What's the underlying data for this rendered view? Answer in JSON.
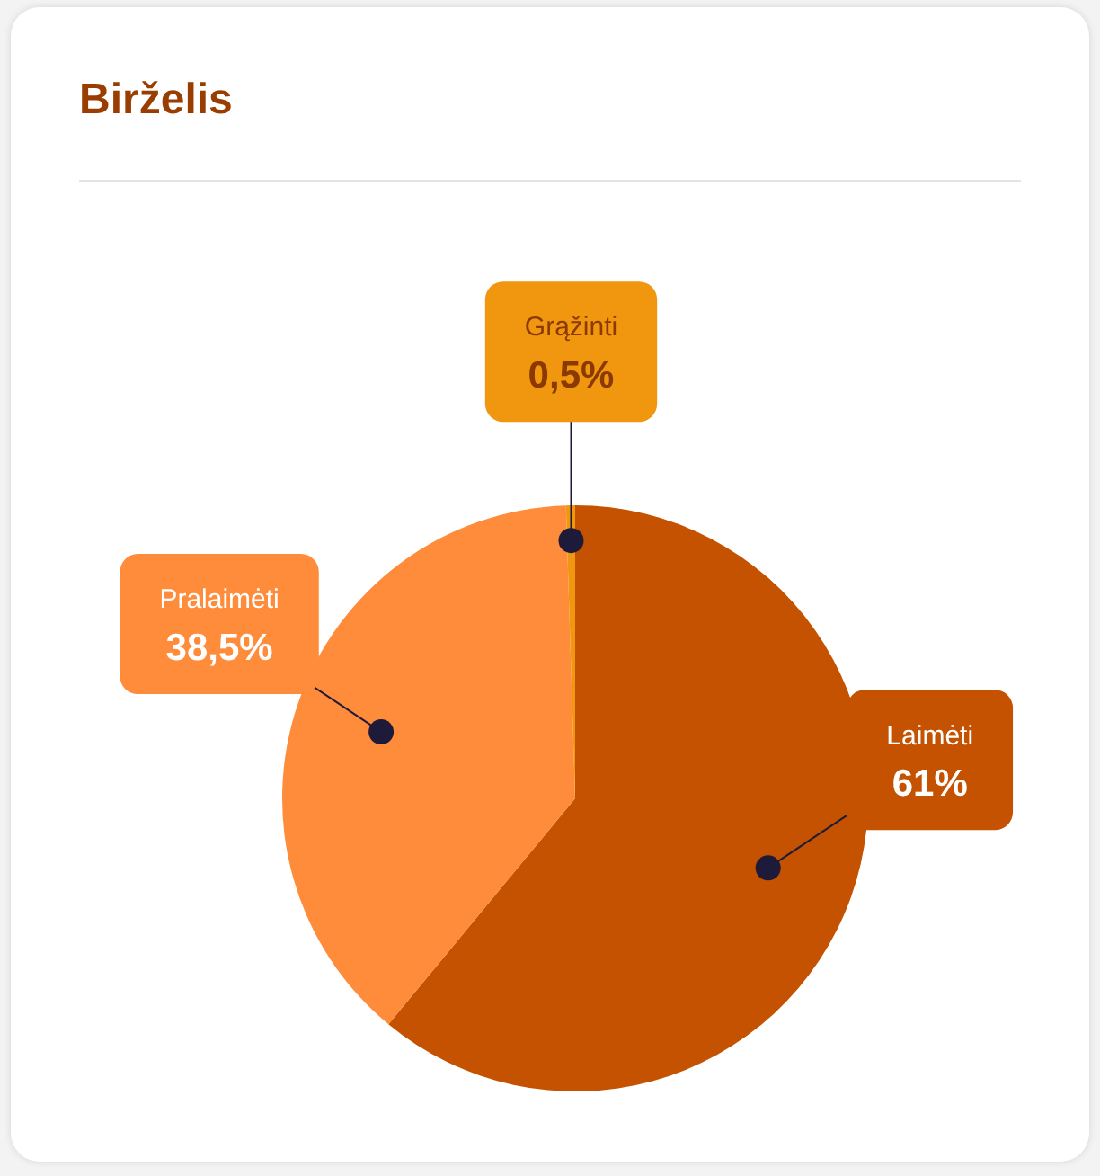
{
  "chart_data": {
    "type": "pie",
    "title": "Birželis",
    "categories": [
      "Laimėti",
      "Pralaimėti",
      "Grąžinti"
    ],
    "values": [
      61,
      38.5,
      0.5
    ],
    "value_labels": [
      "61%",
      "38,5%",
      "0,5%"
    ],
    "colors": [
      "#c45200",
      "#ff8c3a",
      "#f0960f"
    ],
    "legend": false
  }
}
